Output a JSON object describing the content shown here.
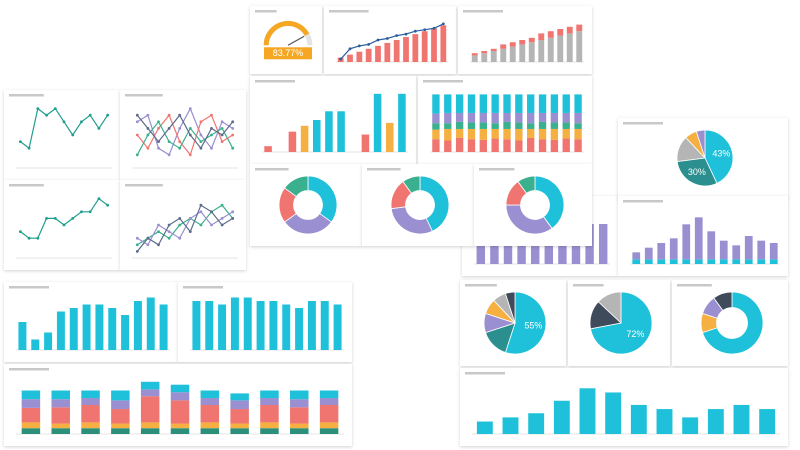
{
  "chart_data": [
    {
      "type": "gauge",
      "values": [
        83.77
      ],
      "value_labels": [
        "83.77%"
      ],
      "ylim": [
        0,
        100
      ],
      "color": "#f5a623"
    },
    {
      "type": "bar",
      "ylim": [
        0,
        30
      ],
      "series": [
        {
          "color": "#f07470",
          "values": [
            3,
            5,
            7,
            9,
            11,
            13,
            15,
            17,
            19,
            21,
            23,
            25
          ]
        },
        {
          "color": "#2a5d9f",
          "type": "line",
          "values": [
            2,
            9,
            11,
            12,
            15,
            16,
            18,
            19,
            21,
            22,
            23,
            26
          ]
        }
      ]
    },
    {
      "type": "bar",
      "stacked": true,
      "ylim": [
        0,
        20
      ],
      "series": [
        {
          "color": "#b5b5b5",
          "values": [
            3,
            4,
            5,
            6,
            7,
            8,
            9,
            10,
            11,
            12,
            13,
            14
          ]
        },
        {
          "color": "#f07470",
          "values": [
            1,
            1,
            1,
            2,
            2,
            2,
            2,
            3,
            3,
            3,
            3,
            3
          ]
        }
      ]
    },
    {
      "type": "bar",
      "ylim": [
        0,
        110
      ],
      "values": [
        10,
        0,
        35,
        45,
        55,
        70,
        70,
        0,
        30,
        100,
        50,
        100
      ],
      "colors": [
        "#f07470",
        "#f07470",
        "#f07470",
        "#f5b041",
        "#1ec1d9",
        "#1ec1d9",
        "#1ec1d9",
        "#f07470",
        "#f07470",
        "#1ec1d9",
        "#f5b041",
        "#1ec1d9"
      ]
    },
    {
      "type": "bar",
      "stacked": true,
      "ylim": [
        0,
        100
      ],
      "series": [
        {
          "color": "#f07470",
          "values": [
            20,
            18,
            22,
            20,
            19,
            21,
            20,
            18,
            22,
            20,
            19,
            21,
            20
          ]
        },
        {
          "color": "#f5b041",
          "values": [
            15,
            18,
            14,
            16,
            17,
            15,
            16,
            18,
            14,
            16,
            17,
            15,
            16
          ]
        },
        {
          "color": "#3bb08f",
          "values": [
            10,
            9,
            11,
            10,
            10,
            9,
            11,
            10,
            9,
            11,
            10,
            10,
            9
          ]
        },
        {
          "color": "#9a8fd0",
          "values": [
            15,
            16,
            14,
            15,
            15,
            16,
            14,
            15,
            16,
            14,
            15,
            15,
            16
          ]
        },
        {
          "color": "#1ec1d9",
          "values": [
            30,
            29,
            29,
            29,
            29,
            29,
            29,
            29,
            29,
            29,
            29,
            29,
            29
          ]
        }
      ]
    },
    {
      "type": "pie",
      "donut": true,
      "values": [
        35,
        30,
        20,
        15
      ],
      "colors": [
        "#1ec1d9",
        "#9a8fd0",
        "#f07470",
        "#3bb08f"
      ]
    },
    {
      "type": "pie",
      "donut": true,
      "values": [
        43,
        30,
        17,
        10
      ],
      "colors": [
        "#1ec1d9",
        "#9a8fd0",
        "#f07470",
        "#3bb08f"
      ]
    },
    {
      "type": "pie",
      "donut": true,
      "values": [
        40,
        35,
        15,
        10
      ],
      "colors": [
        "#1ec1d9",
        "#9a8fd0",
        "#f07470",
        "#3bb08f"
      ]
    },
    {
      "type": "line",
      "ylim": [
        0,
        10
      ],
      "series": [
        {
          "color": "#1e9e8e",
          "values": [
            4,
            3,
            9,
            8,
            9,
            7,
            5,
            7,
            8,
            6,
            8
          ]
        }
      ]
    },
    {
      "type": "line",
      "ylim": [
        0,
        10
      ],
      "series": [
        {
          "color": "#9a8fd0",
          "values": [
            7,
            8,
            3,
            2,
            6,
            9,
            5,
            3,
            7,
            6
          ]
        },
        {
          "color": "#f07470",
          "values": [
            5,
            3,
            6,
            8,
            4,
            2,
            7,
            8,
            4,
            5
          ]
        },
        {
          "color": "#3bb08f",
          "values": [
            2,
            5,
            7,
            4,
            3,
            6,
            4,
            5,
            6,
            3
          ]
        },
        {
          "color": "#5b6b8a",
          "values": [
            8,
            6,
            4,
            6,
            8,
            5,
            3,
            6,
            5,
            7
          ]
        }
      ]
    },
    {
      "type": "line",
      "ylim": [
        0,
        10
      ],
      "series": [
        {
          "color": "#1e9e8e",
          "values": [
            4,
            3,
            3,
            6,
            6,
            5,
            6,
            7,
            7,
            9,
            8
          ]
        }
      ]
    },
    {
      "type": "line",
      "ylim": [
        0,
        10
      ],
      "series": [
        {
          "color": "#3bb08f",
          "values": [
            2,
            3,
            4,
            3,
            5,
            6,
            5,
            7,
            8,
            6
          ]
        },
        {
          "color": "#9a8fd0",
          "values": [
            3,
            2,
            5,
            4,
            3,
            6,
            7,
            5,
            6,
            7
          ]
        },
        {
          "color": "#5b6b8a",
          "values": [
            1,
            3,
            2,
            5,
            6,
            4,
            8,
            7,
            5,
            6
          ]
        }
      ]
    },
    {
      "type": "bar",
      "ylim": [
        0,
        16
      ],
      "color": "#1ec1d9",
      "values": [
        8,
        3,
        5,
        11,
        12,
        13,
        13,
        12,
        10,
        14,
        15,
        13
      ]
    },
    {
      "type": "bar",
      "ylim": [
        0,
        16
      ],
      "color": "#1ec1d9",
      "values": [
        14,
        14,
        13,
        15,
        15,
        14,
        14,
        13,
        12,
        14,
        14,
        13
      ]
    },
    {
      "type": "bar",
      "stacked": true,
      "ylim": [
        0,
        100
      ],
      "series": [
        {
          "color": "#2b8f7a",
          "values": [
            10,
            10,
            10,
            10,
            10,
            10,
            10,
            10,
            10,
            10,
            10
          ]
        },
        {
          "color": "#f5b041",
          "values": [
            10,
            8,
            10,
            8,
            10,
            8,
            10,
            8,
            10,
            8,
            10
          ]
        },
        {
          "color": "#f07470",
          "values": [
            25,
            28,
            30,
            25,
            45,
            40,
            30,
            25,
            30,
            28,
            30
          ]
        },
        {
          "color": "#9a8fd0",
          "values": [
            15,
            14,
            12,
            15,
            12,
            14,
            12,
            15,
            12,
            14,
            12
          ]
        },
        {
          "color": "#1ec1d9",
          "values": [
            15,
            15,
            13,
            17,
            13,
            13,
            13,
            12,
            13,
            15,
            13
          ]
        }
      ]
    },
    {
      "type": "pie",
      "values": [
        43,
        30,
        15,
        7,
        5
      ],
      "value_labels": [
        "43%",
        "30%",
        null,
        null,
        null
      ],
      "colors": [
        "#1ec1d9",
        "#2b8f8f",
        "#b5b5b5",
        "#f5b041",
        "#9a8fd0"
      ]
    },
    {
      "type": "bar",
      "stacked": true,
      "ylim": [
        0,
        24
      ],
      "series": [
        {
          "color": "#1ec1d9",
          "values": [
            2,
            2,
            2,
            2,
            2,
            2,
            2,
            2,
            2,
            2,
            2,
            2
          ]
        },
        {
          "color": "#9a8fd0",
          "values": [
            3,
            5,
            7,
            9,
            15,
            18,
            12,
            8,
            6,
            10,
            8,
            7
          ]
        }
      ]
    },
    {
      "type": "pie",
      "values": [
        55,
        15,
        10,
        8,
        7,
        5
      ],
      "value_labels": [
        "55%",
        null,
        null,
        null,
        null,
        null
      ],
      "colors": [
        "#1ec1d9",
        "#2b8f8f",
        "#9a8fd0",
        "#f5b041",
        "#b5b5b5",
        "#3f4a5a"
      ]
    },
    {
      "type": "pie",
      "values": [
        72,
        15,
        13
      ],
      "value_labels": [
        "72%",
        null,
        null
      ],
      "colors": [
        "#1ec1d9",
        "#3f4a5a",
        "#b5b5b5"
      ]
    },
    {
      "type": "pie",
      "donut": true,
      "values": [
        70,
        10,
        10,
        10
      ],
      "colors": [
        "#1ec1d9",
        "#f5b041",
        "#9a8fd0",
        "#3f4a5a"
      ]
    },
    {
      "type": "bar",
      "ylim": [
        0,
        13
      ],
      "color": "#1ec1d9",
      "values": [
        3,
        4,
        5,
        8,
        11,
        10,
        7,
        6,
        4,
        6,
        7,
        6
      ]
    },
    {
      "type": "bar",
      "ylim": [
        0,
        14
      ],
      "color": "#9a8fd0",
      "values": [
        10,
        10,
        10,
        10,
        10,
        10,
        10,
        10,
        10,
        10
      ]
    }
  ]
}
